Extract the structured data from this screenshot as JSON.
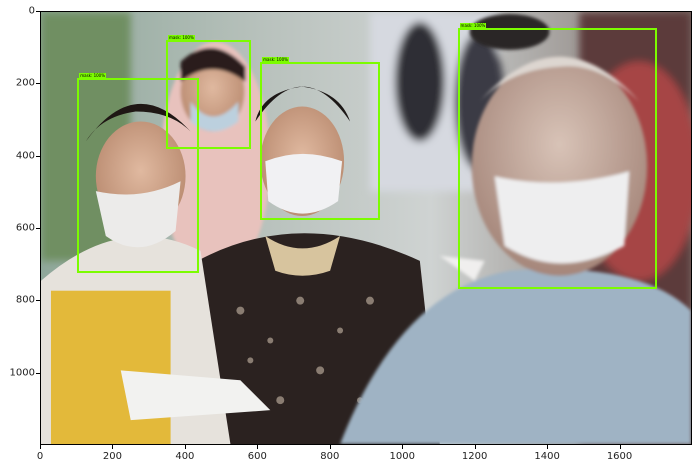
{
  "axes": {
    "x_ticks": [
      "0",
      "200",
      "400",
      "600",
      "800",
      "1000",
      "1200",
      "1400",
      "1600"
    ],
    "y_ticks": [
      "0",
      "200",
      "400",
      "600",
      "800",
      "1000"
    ],
    "x_range": [
      0,
      1800
    ],
    "y_range": [
      1200,
      0
    ]
  },
  "detections": [
    {
      "label": "mask: 100%",
      "xmin": 100,
      "ymin": 183,
      "xmax": 435,
      "ymax": 722
    },
    {
      "label": "mask: 100%",
      "xmin": 345,
      "ymin": 78,
      "xmax": 580,
      "ymax": 380
    },
    {
      "label": "mask: 100%",
      "xmin": 605,
      "ymin": 137,
      "xmax": 935,
      "ymax": 575
    },
    {
      "label": "mask: 100%",
      "xmin": 1150,
      "ymin": 43,
      "xmax": 1700,
      "ymax": 765
    }
  ],
  "colors": {
    "box": "#7cfc00"
  },
  "image": {
    "description_icon": "crowd-with-face-masks-photo"
  }
}
